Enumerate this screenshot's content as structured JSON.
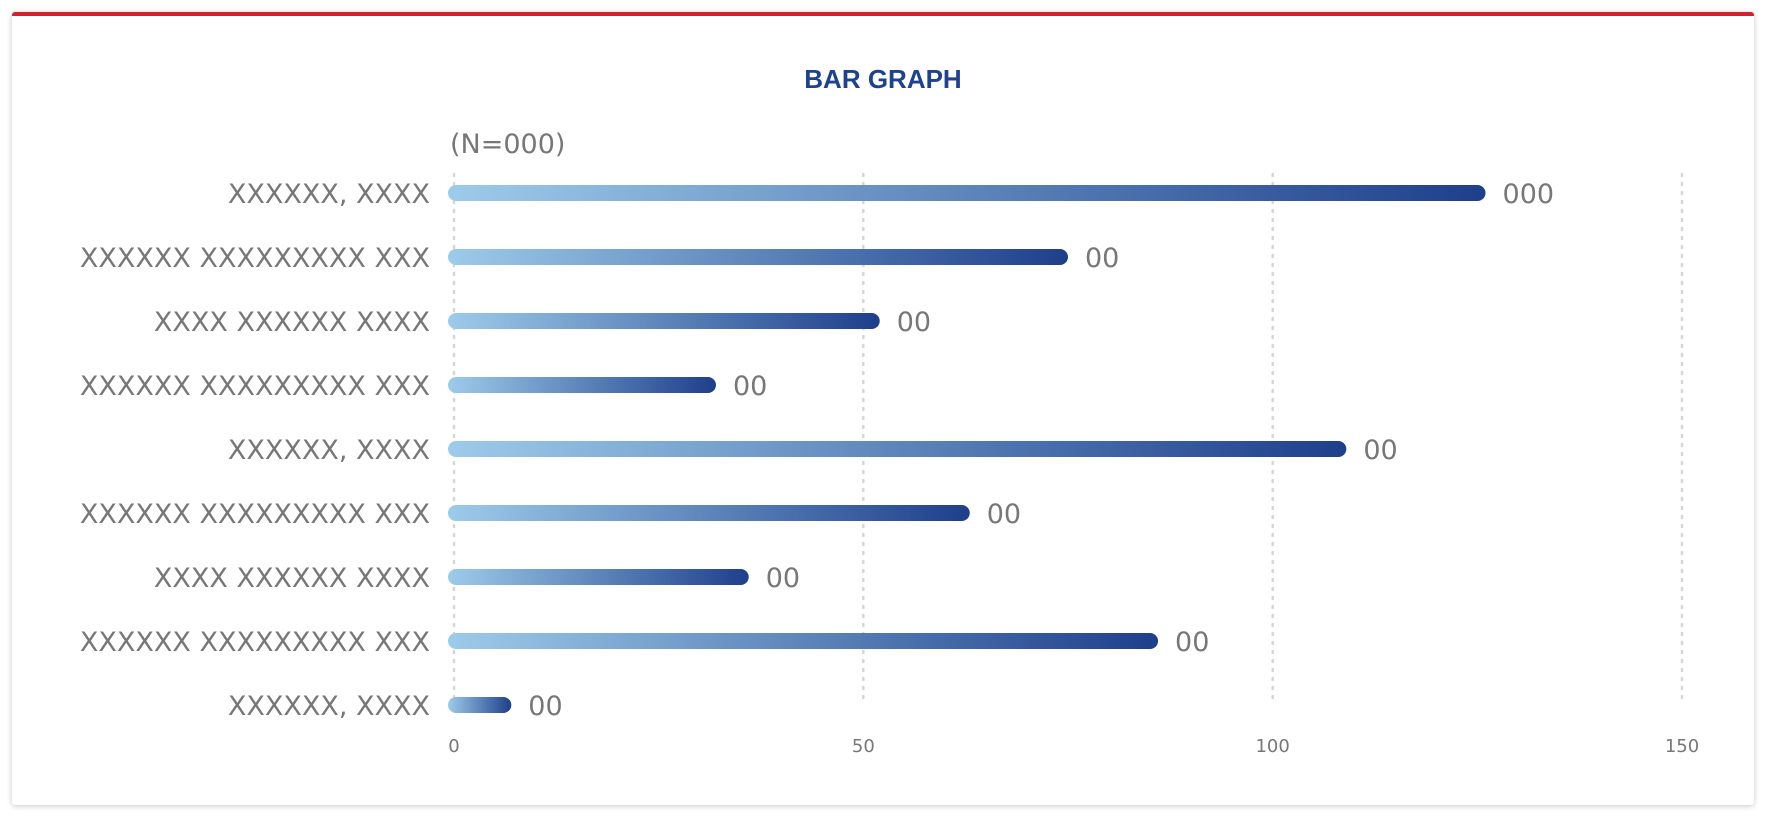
{
  "chart_data": {
    "type": "bar",
    "orientation": "horizontal",
    "title": "BAR GRAPH",
    "subtitle": "(N=000)",
    "categories": [
      "XXXXXX, XXXX",
      "XXXXXX XXXXXXXXX XXX",
      "XXXX XXXXXX XXXX",
      "XXXXXX XXXXXXXXX XXX",
      "XXXXXX, XXXX",
      "XXXXXX XXXXXXXXX XXX",
      "XXXX XXXXXX XXXX",
      "XXXXXX XXXXXXXXX XXX",
      "XXXXXX, XXXX"
    ],
    "values": [
      126,
      75,
      52,
      32,
      109,
      63,
      36,
      86,
      7
    ],
    "data_labels": [
      "000",
      "00",
      "00",
      "00",
      "00",
      "00",
      "00",
      "00",
      "00"
    ],
    "xlim": [
      0,
      150
    ],
    "xticks": [
      0,
      50,
      100,
      150
    ],
    "grid": "vertical dotted",
    "colors": {
      "gradient_start": "#9dcbeb",
      "gradient_end": "#1e3f8b",
      "title": "#1e4190",
      "accent": "#d3202c",
      "text": "#777777",
      "grid": "#d6d6d6"
    }
  }
}
